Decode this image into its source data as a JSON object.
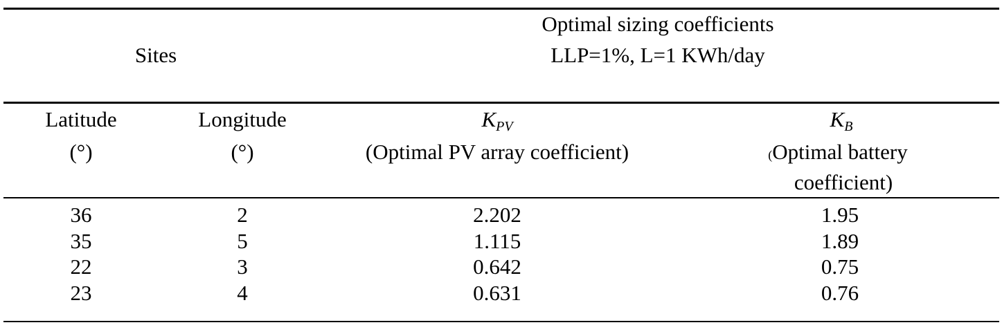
{
  "header": {
    "sites": "Sites",
    "group_title": "Optimal sizing coefficients",
    "group_condition": "LLP=1%, L=1 KWh/day"
  },
  "columns": [
    {
      "name": "Latitude",
      "unit": "(°)"
    },
    {
      "name": "Longitude",
      "unit": "(°)"
    },
    {
      "symbol": "K",
      "subscript": "PV",
      "desc": "(Optimal PV array coefficient)"
    },
    {
      "symbol": "K",
      "subscript": "B",
      "desc_open": "(",
      "desc_line1": "Optimal battery",
      "desc_line2": "coefficient)"
    }
  ],
  "rows": [
    [
      "36",
      "2",
      "2.202",
      "1.95"
    ],
    [
      "35",
      "5",
      "1.115",
      "1.89"
    ],
    [
      "22",
      "3",
      "0.642",
      "0.75"
    ],
    [
      "23",
      "4",
      "0.631",
      "0.76"
    ]
  ]
}
